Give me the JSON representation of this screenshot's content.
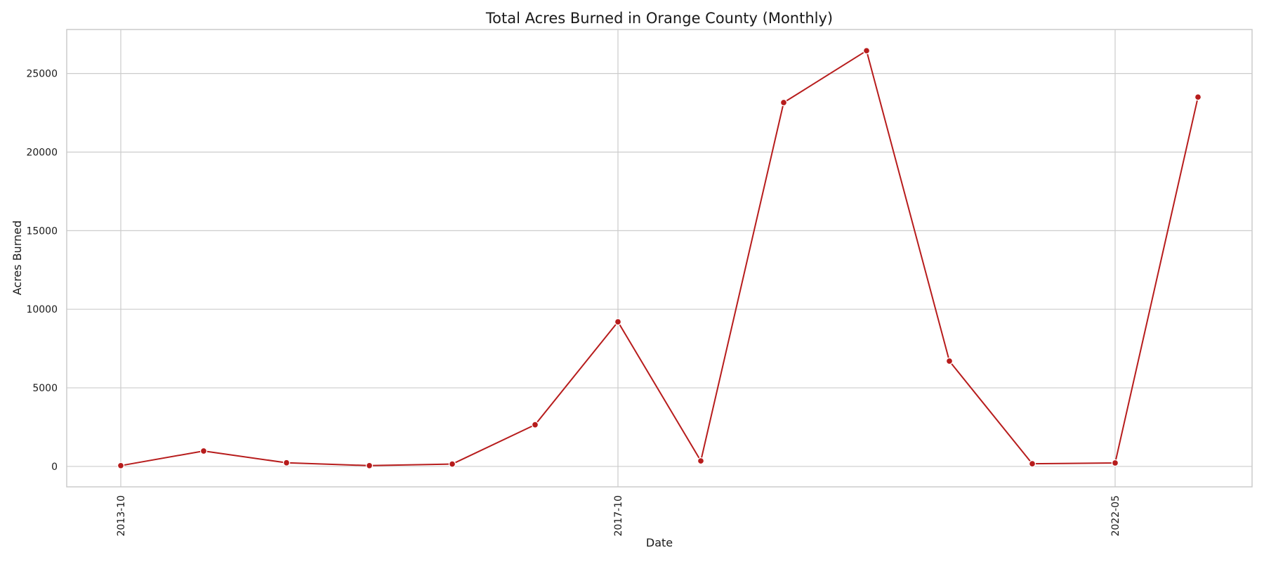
{
  "chart_data": {
    "type": "line",
    "title": "Total Acres Burned in Orange County (Monthly)",
    "xlabel": "Date",
    "ylabel": "Acres Burned",
    "x": [
      "2013-10",
      "2014-07",
      "2015-04",
      "2016-01",
      "2016-10",
      "2017-01",
      "2017-10",
      "2018-07",
      "2019-04",
      "2020-01",
      "2020-10",
      "2021-07",
      "2022-05",
      "2023-02"
    ],
    "x_tick_labels": [
      "2013-10",
      "2017-10",
      "2022-05"
    ],
    "x_tick_indices": [
      0,
      6,
      12
    ],
    "series": [
      {
        "values": [
          50,
          980,
          230,
          50,
          150,
          2650,
          9200,
          350,
          23150,
          26450,
          6700,
          170,
          220,
          23500
        ],
        "color": "#b71c1c"
      }
    ],
    "y_ticks": [
      0,
      5000,
      10000,
      15000,
      20000,
      25000
    ],
    "ylim": [
      -1300,
      27800
    ],
    "grid": true,
    "legend": "none"
  }
}
